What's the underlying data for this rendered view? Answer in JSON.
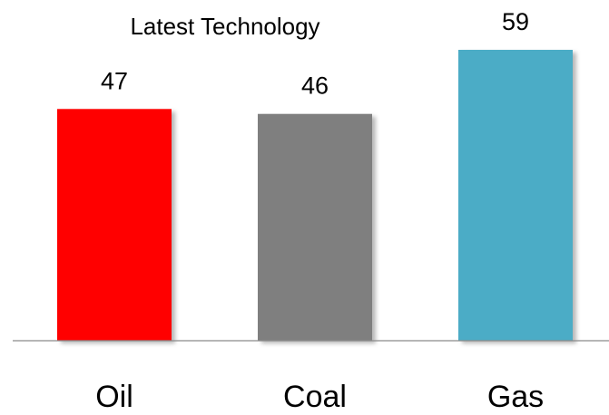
{
  "chart_data": {
    "type": "bar",
    "title": "Latest Technology",
    "categories": [
      "Oil",
      "Coal",
      "Gas"
    ],
    "values": [
      47,
      46,
      59
    ],
    "value_labels": [
      "47",
      "46",
      "59"
    ],
    "colors": [
      "#ff0000",
      "#7f7f7f",
      "#4bacc6"
    ],
    "ylim": [
      0,
      59
    ],
    "grid": false,
    "legend": "none",
    "xlabel": "",
    "ylabel": ""
  }
}
